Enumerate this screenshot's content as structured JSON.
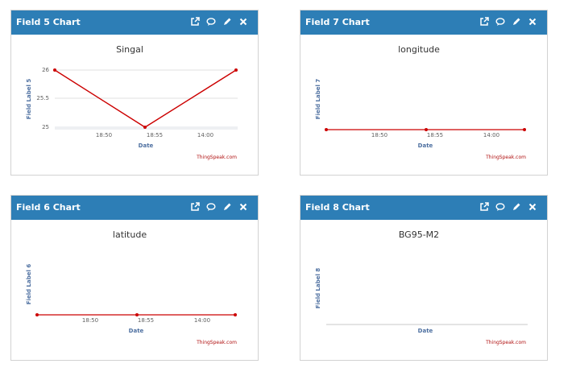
{
  "panels": [
    {
      "id": "field5",
      "header_title": "Field 5 Chart",
      "chart_data": {
        "type": "line",
        "title": "Singal",
        "xlabel": "Date",
        "ylabel": "Field Label 5",
        "x_tick_labels": [
          "18:50",
          "18:55",
          "14:00"
        ],
        "y_tick_labels": [
          "26",
          "25.5",
          "25"
        ],
        "ylim": [
          25,
          26
        ],
        "grid": true,
        "series": [
          {
            "x": [
              "18:46",
              "18:54",
              "14:02"
            ],
            "values": [
              26,
              25,
              26
            ]
          }
        ],
        "color": "#cc0000",
        "credit": "ThingSpeak.com"
      }
    },
    {
      "id": "field7",
      "header_title": "Field 7 Chart",
      "chart_data": {
        "type": "line",
        "title": "longitude",
        "xlabel": "Date",
        "ylabel": "Field Label 7",
        "x_tick_labels": [
          "18:50",
          "18:55",
          "14:00"
        ],
        "y_tick_labels": [],
        "grid": false,
        "series": [
          {
            "x": [
              "18:46",
              "18:54",
              "14:02"
            ],
            "values": [
              0,
              0,
              0
            ]
          }
        ],
        "color": "#cc0000",
        "credit": "ThingSpeak.com"
      }
    },
    {
      "id": "field6",
      "header_title": "Field 6 Chart",
      "chart_data": {
        "type": "line",
        "title": "latitude",
        "xlabel": "Date",
        "ylabel": "Field Label 6",
        "x_tick_labels": [
          "18:50",
          "18:55",
          "14:00"
        ],
        "y_tick_labels": [],
        "grid": false,
        "series": [
          {
            "x": [
              "18:46",
              "18:54",
              "14:02"
            ],
            "values": [
              0,
              0,
              0
            ]
          }
        ],
        "color": "#cc0000",
        "credit": "ThingSpeak.com"
      }
    },
    {
      "id": "field8",
      "header_title": "Field 8 Chart",
      "chart_data": {
        "type": "line",
        "title": "BG95-M2",
        "xlabel": "Date",
        "ylabel": "Field Label 8",
        "x_tick_labels": [],
        "y_tick_labels": [],
        "grid": false,
        "series": [],
        "color": "#cc0000",
        "credit": "ThingSpeak.com"
      }
    }
  ],
  "icons": {
    "open": "external-link-icon",
    "comment": "comment-icon",
    "edit": "pencil-icon",
    "close": "close-icon"
  }
}
